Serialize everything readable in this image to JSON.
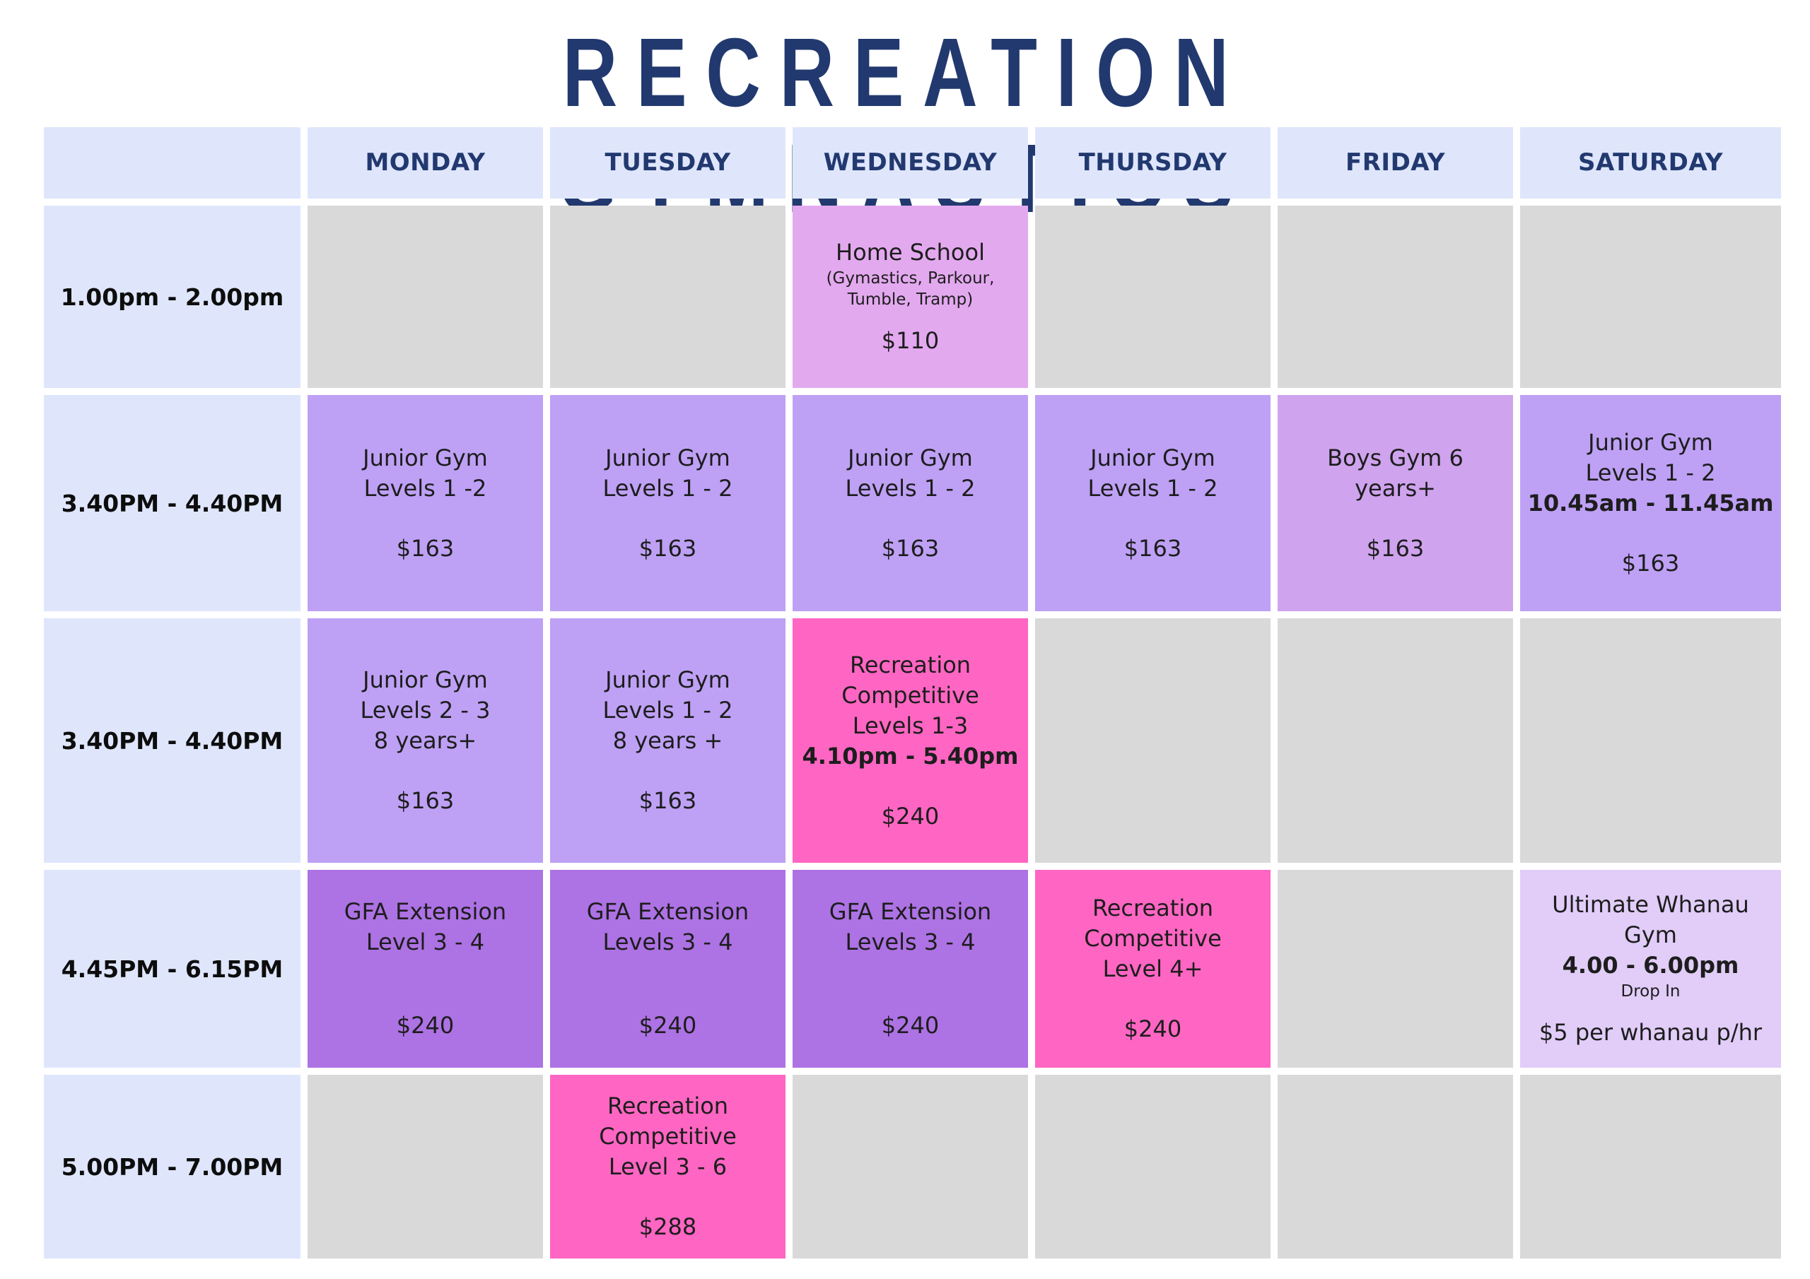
{
  "title": "RECREATION GYMNASTICS",
  "days": [
    "MONDAY",
    "TUESDAY",
    "WEDNESDAY",
    "THURSDAY",
    "FRIDAY",
    "SATURDAY"
  ],
  "times": [
    "1.00pm - 2.00pm",
    "3.40PM - 4.40PM",
    "3.40PM - 4.40PM",
    "4.45PM - 6.15PM",
    "5.00PM - 7.00PM"
  ],
  "slots": {
    "r1_wed": {
      "name": "Home School",
      "detail1": "(Gymastics, Parkour,",
      "detail2": "Tumble, Tramp)",
      "price": "$110"
    },
    "r2_mon": {
      "line1": "Junior Gym",
      "line2": "Levels 1 -2",
      "price": "$163"
    },
    "r2_tue": {
      "line1": "Junior Gym",
      "line2": "Levels 1 - 2",
      "price": "$163"
    },
    "r2_wed": {
      "line1": "Junior Gym",
      "line2": "Levels 1 - 2",
      "price": "$163"
    },
    "r2_thu": {
      "line1": "Junior Gym",
      "line2": "Levels 1 - 2",
      "price": "$163"
    },
    "r2_fri": {
      "line1": "Boys Gym 6",
      "line2": "years+",
      "price": "$163"
    },
    "r2_sat": {
      "line1": "Junior Gym",
      "line2": "Levels 1 - 2",
      "time": "10.45am - 11.45am",
      "price": "$163"
    },
    "r3_mon": {
      "line1": "Junior Gym",
      "line2": "Levels 2 - 3",
      "line3": "8 years+",
      "price": "$163"
    },
    "r3_tue": {
      "line1": "Junior Gym",
      "line2": "Levels 1 - 2",
      "line3": "8 years +",
      "price": "$163"
    },
    "r3_wed": {
      "line1": "Recreation",
      "line2": "Competitive",
      "line3": "Levels 1-3",
      "time": "4.10pm - 5.40pm",
      "price": "$240"
    },
    "r4_mon": {
      "line1": "GFA Extension",
      "line2": "Level 3 - 4",
      "price": "$240"
    },
    "r4_tue": {
      "line1": "GFA Extension",
      "line2": "Levels 3 - 4",
      "price": "$240"
    },
    "r4_wed": {
      "line1": "GFA Extension",
      "line2": "Levels 3 - 4",
      "price": "$240"
    },
    "r4_thu": {
      "line1": "Recreation",
      "line2": "Competitive",
      "line3": "Level 4+",
      "price": "$240"
    },
    "r4_sat": {
      "line1": "Ultimate Whanau",
      "line2": "Gym",
      "time": "4.00 - 6.00pm",
      "note": "Drop In",
      "price": "$5 per whanau p/hr"
    },
    "r5_tue": {
      "line1": "Recreation",
      "line2": "Competitive",
      "line3": "Level 3 - 6",
      "price": "$288"
    }
  },
  "colors": {
    "title": "#22396f",
    "header_bg": "#dfe6fc",
    "empty": "#d9d9d9",
    "home_school": "#e3a9ef",
    "junior_gym": "#bea1f5",
    "boys_gym": "#cfa3ee",
    "gfa_extension": "#ad72e4",
    "recreation_competitive": "#ff66c3",
    "ultimate_whanau": "#e1cdf8"
  }
}
